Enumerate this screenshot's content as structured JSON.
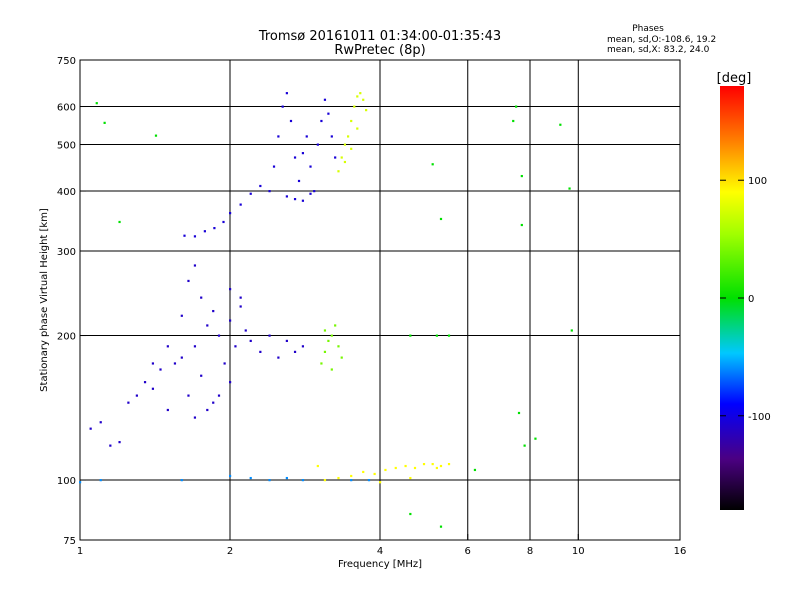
{
  "header": {
    "title_line1": "Tromsø 20161011 01:34:00-01:35:43",
    "title_line2": "RwPretec (8p)"
  },
  "stats": {
    "label": "Phases",
    "line_o": "mean, sd,O:-108.6, 19.2",
    "line_x": "mean, sd,X:  83.2, 24.0"
  },
  "colorbar": {
    "unit": "[deg]",
    "ticks": [
      {
        "label": "100",
        "value": 100
      },
      {
        "label": "0",
        "value": 0
      },
      {
        "label": "-100",
        "value": -100
      }
    ],
    "range": [
      -180,
      180
    ]
  },
  "chart_data": {
    "type": "scatter",
    "title": "Tromsø 20161011 01:34:00-01:35:43",
    "subtitle": "RwPretec (8p)",
    "xlabel": "Frequency [MHz]",
    "ylabel": "Stationary phase Virtual Height [km]",
    "xscale": "log",
    "yscale": "log",
    "xlim": [
      1,
      16
    ],
    "ylim": [
      75,
      750
    ],
    "x_ticks": [
      {
        "label": "1",
        "value": 1
      },
      {
        "label": "2",
        "value": 2
      },
      {
        "label": "4",
        "value": 4
      },
      {
        "label": "6",
        "value": 6
      },
      {
        "label": "8",
        "value": 8
      },
      {
        "label": "10",
        "value": 10
      },
      {
        "label": "16",
        "value": 16
      }
    ],
    "x_grid": [
      2,
      4,
      6,
      8,
      10
    ],
    "y_ticks": [
      {
        "label": "75",
        "value": 75
      },
      {
        "label": "100",
        "value": 100
      },
      {
        "label": "200",
        "value": 200
      },
      {
        "label": "300",
        "value": 300
      },
      {
        "label": "400",
        "value": 400
      },
      {
        "label": "500",
        "value": 500
      },
      {
        "label": "600",
        "value": 600
      },
      {
        "label": "750",
        "value": 750
      }
    ],
    "y_grid": [
      100,
      200,
      300,
      400,
      500,
      600
    ],
    "color_quantity": "phase [deg]",
    "clusters": [
      {
        "group": "O-mode E/F1 trace",
        "phase_deg": -110,
        "points": [
          [
            1.05,
            128
          ],
          [
            1.1,
            132
          ],
          [
            1.15,
            118
          ],
          [
            1.2,
            120
          ],
          [
            1.25,
            145
          ],
          [
            1.3,
            150
          ],
          [
            1.35,
            160
          ],
          [
            1.4,
            155
          ],
          [
            1.45,
            170
          ],
          [
            1.5,
            140
          ],
          [
            1.55,
            175
          ],
          [
            1.6,
            180
          ],
          [
            1.65,
            150
          ],
          [
            1.7,
            190
          ],
          [
            1.75,
            165
          ],
          [
            1.8,
            210
          ],
          [
            1.85,
            145
          ],
          [
            1.9,
            200
          ],
          [
            1.95,
            175
          ],
          [
            2.0,
            215
          ],
          [
            2.05,
            190
          ],
          [
            2.1,
            230
          ],
          [
            2.15,
            205
          ],
          [
            2.2,
            195
          ],
          [
            2.3,
            185
          ],
          [
            2.4,
            200
          ],
          [
            2.5,
            180
          ],
          [
            2.6,
            195
          ],
          [
            2.7,
            185
          ],
          [
            2.8,
            190
          ],
          [
            1.6,
            220
          ],
          [
            1.65,
            260
          ],
          [
            1.7,
            280
          ],
          [
            1.75,
            240
          ],
          [
            1.85,
            225
          ],
          [
            2.0,
            250
          ],
          [
            2.1,
            240
          ],
          [
            1.5,
            190
          ],
          [
            1.4,
            175
          ],
          [
            1.7,
            135
          ],
          [
            1.8,
            140
          ],
          [
            1.9,
            150
          ],
          [
            2.0,
            160
          ]
        ]
      },
      {
        "group": "O-mode F2 trace",
        "phase_deg": -105,
        "points": [
          [
            1.62,
            323
          ],
          [
            1.7,
            322
          ],
          [
            1.78,
            330
          ],
          [
            1.86,
            335
          ],
          [
            1.94,
            345
          ],
          [
            2.0,
            360
          ],
          [
            2.1,
            375
          ],
          [
            2.2,
            395
          ],
          [
            2.3,
            410
          ],
          [
            2.4,
            400
          ],
          [
            2.45,
            450
          ],
          [
            2.5,
            520
          ],
          [
            2.55,
            600
          ],
          [
            2.6,
            640
          ],
          [
            2.65,
            560
          ],
          [
            2.7,
            470
          ],
          [
            2.75,
            420
          ],
          [
            2.8,
            480
          ],
          [
            2.85,
            520
          ],
          [
            2.9,
            450
          ],
          [
            2.95,
            400
          ],
          [
            3.0,
            500
          ],
          [
            3.05,
            560
          ],
          [
            3.1,
            620
          ],
          [
            3.15,
            580
          ],
          [
            3.2,
            520
          ],
          [
            3.25,
            470
          ],
          [
            2.6,
            390
          ],
          [
            2.7,
            385
          ],
          [
            2.8,
            382
          ],
          [
            2.9,
            395
          ]
        ]
      },
      {
        "group": "X-mode F2 trace",
        "phase_deg": 75,
        "points": [
          [
            3.3,
            440
          ],
          [
            3.35,
            470
          ],
          [
            3.4,
            500
          ],
          [
            3.45,
            520
          ],
          [
            3.5,
            560
          ],
          [
            3.55,
            600
          ],
          [
            3.6,
            630
          ],
          [
            3.65,
            640
          ],
          [
            3.7,
            620
          ],
          [
            3.75,
            590
          ],
          [
            3.6,
            540
          ],
          [
            3.5,
            490
          ],
          [
            3.4,
            460
          ]
        ]
      },
      {
        "group": "X-mode F1 trace",
        "phase_deg": 40,
        "points": [
          [
            3.05,
            175
          ],
          [
            3.1,
            185
          ],
          [
            3.15,
            195
          ],
          [
            3.2,
            200
          ],
          [
            3.25,
            210
          ],
          [
            3.3,
            190
          ],
          [
            3.35,
            180
          ],
          [
            3.1,
            205
          ],
          [
            3.2,
            170
          ]
        ]
      },
      {
        "group": "E-layer echoes",
        "phase_deg": 90,
        "points": [
          [
            3.1,
            100
          ],
          [
            3.3,
            101
          ],
          [
            3.5,
            102
          ],
          [
            3.7,
            104
          ],
          [
            3.9,
            103
          ],
          [
            4.1,
            105
          ],
          [
            4.3,
            106
          ],
          [
            4.5,
            107
          ],
          [
            4.7,
            106
          ],
          [
            4.9,
            108
          ],
          [
            5.1,
            108
          ],
          [
            5.3,
            107
          ],
          [
            5.5,
            108
          ],
          [
            3.0,
            107
          ],
          [
            4.0,
            99
          ],
          [
            4.6,
            101
          ],
          [
            5.2,
            106
          ]
        ]
      },
      {
        "group": "Low E echoes",
        "phase_deg": -60,
        "points": [
          [
            1.0,
            99
          ],
          [
            1.1,
            100
          ],
          [
            1.6,
            100
          ],
          [
            2.2,
            101
          ],
          [
            2.4,
            100
          ],
          [
            2.6,
            101
          ],
          [
            2.8,
            100
          ],
          [
            2.0,
            102
          ],
          [
            3.5,
            100
          ],
          [
            3.8,
            100
          ]
        ]
      },
      {
        "group": "Scattered echoes",
        "phase_deg": 0,
        "points": [
          [
            1.08,
            610
          ],
          [
            1.12,
            555
          ],
          [
            1.42,
            522
          ],
          [
            1.2,
            345
          ],
          [
            7.5,
            600
          ],
          [
            7.4,
            560
          ],
          [
            9.2,
            550
          ],
          [
            9.6,
            405
          ],
          [
            5.3,
            350
          ],
          [
            5.1,
            455
          ],
          [
            7.7,
            430
          ],
          [
            7.7,
            340
          ],
          [
            6.2,
            105
          ],
          [
            7.8,
            118
          ],
          [
            8.2,
            122
          ],
          [
            7.6,
            138
          ],
          [
            4.6,
            200
          ],
          [
            5.2,
            200
          ],
          [
            5.5,
            200
          ],
          [
            9.7,
            205
          ],
          [
            5.3,
            80
          ],
          [
            4.6,
            85
          ]
        ]
      }
    ]
  }
}
